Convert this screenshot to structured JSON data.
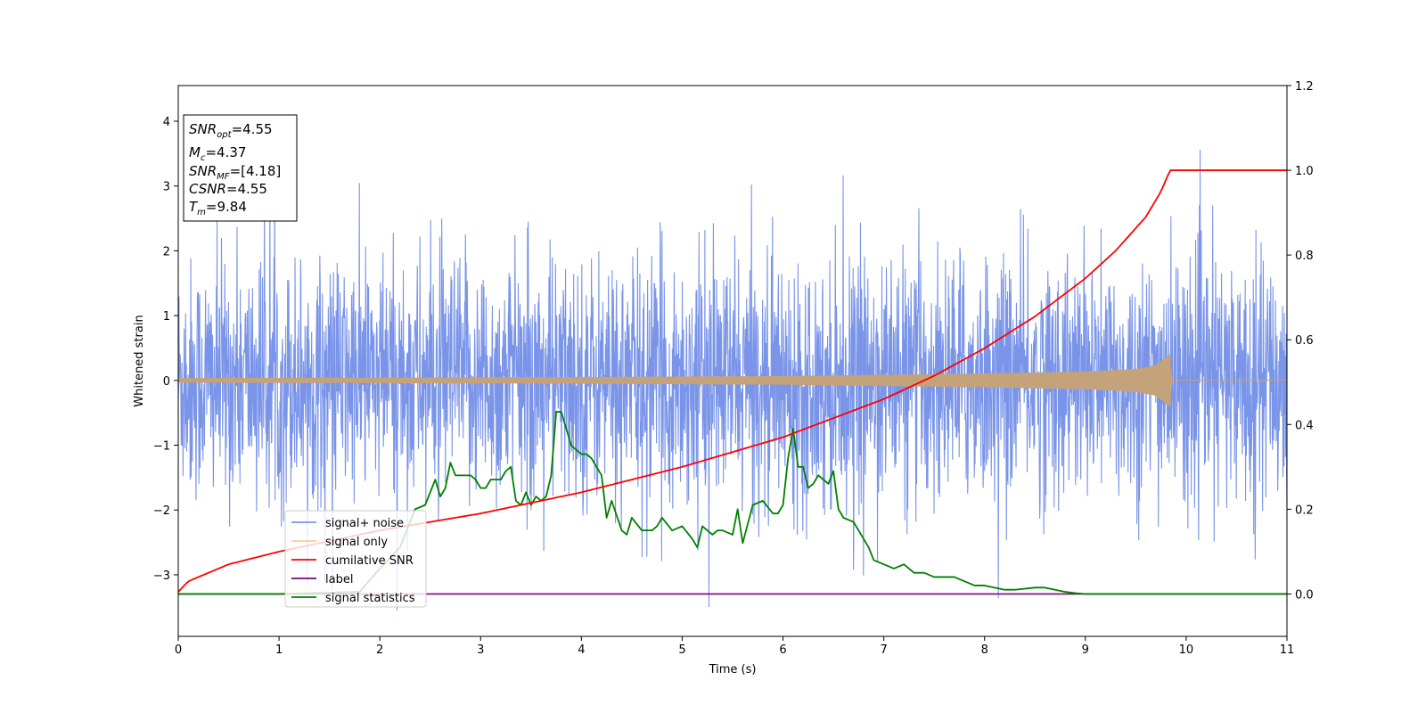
{
  "chart_data": {
    "type": "line",
    "title": "",
    "xlabel": "Time (s)",
    "ylabel": "Whitened strain",
    "xlim": [
      0,
      11
    ],
    "ylim_left": [
      -3.95,
      4.55
    ],
    "ylim_right": [
      -0.1,
      1.2
    ],
    "x_ticks": [
      0,
      1,
      2,
      3,
      4,
      5,
      6,
      7,
      8,
      9,
      10,
      11
    ],
    "y_ticks_left": [
      -3,
      -2,
      -1,
      0,
      1,
      2,
      3,
      4
    ],
    "y_ticks_right": [
      0.0,
      0.2,
      0.4,
      0.6,
      0.8,
      1.0,
      1.2
    ],
    "grid": false,
    "legend_position": "lower-left",
    "merger_time": 9.84,
    "series": [
      {
        "name": "signal+ noise",
        "axis": "left",
        "color": "#7994e8",
        "description_envelope": {
          "typical_amplitude": 1.5,
          "max": 4.15,
          "min": -3.55
        }
      },
      {
        "name": "signal only",
        "axis": "left",
        "color": "#c4a27a",
        "envelope": {
          "x": [
            0,
            2,
            4,
            6,
            7,
            8,
            9,
            9.5,
            9.7,
            9.84,
            9.85,
            11
          ],
          "amplitude": [
            0.03,
            0.035,
            0.045,
            0.06,
            0.08,
            0.1,
            0.13,
            0.17,
            0.23,
            0.4,
            0.0,
            0.0
          ]
        }
      },
      {
        "name": "cumilative SNR",
        "axis": "right",
        "color": "#ff0000",
        "x": [
          0,
          0.1,
          0.5,
          1,
          1.5,
          2,
          3,
          4,
          5,
          6,
          7,
          7.5,
          8,
          8.5,
          9,
          9.3,
          9.6,
          9.75,
          9.84,
          10,
          11
        ],
        "values": [
          0.005,
          0.03,
          0.07,
          0.1,
          0.125,
          0.15,
          0.19,
          0.24,
          0.3,
          0.37,
          0.46,
          0.515,
          0.58,
          0.655,
          0.745,
          0.81,
          0.89,
          0.95,
          1.0,
          1.0,
          1.0
        ]
      },
      {
        "name": "label",
        "axis": "right",
        "color": "#800080",
        "x": [
          0,
          11
        ],
        "values": [
          0.0,
          0.0
        ]
      },
      {
        "name": "signal statistics",
        "axis": "right",
        "color": "#008000",
        "x": [
          0,
          1,
          1.8,
          2.0,
          2.2,
          2.35,
          2.45,
          2.55,
          2.6,
          2.65,
          2.7,
          2.75,
          2.8,
          2.9,
          2.95,
          3.0,
          3.05,
          3.1,
          3.2,
          3.25,
          3.3,
          3.35,
          3.4,
          3.45,
          3.5,
          3.55,
          3.6,
          3.65,
          3.7,
          3.75,
          3.8,
          3.9,
          4.0,
          4.05,
          4.1,
          4.2,
          4.25,
          4.3,
          4.4,
          4.45,
          4.5,
          4.6,
          4.7,
          4.75,
          4.8,
          4.9,
          5.0,
          5.1,
          5.15,
          5.2,
          5.3,
          5.35,
          5.4,
          5.5,
          5.55,
          5.6,
          5.7,
          5.8,
          5.9,
          5.95,
          6.0,
          6.05,
          6.1,
          6.15,
          6.2,
          6.25,
          6.3,
          6.35,
          6.4,
          6.45,
          6.5,
          6.55,
          6.6,
          6.7,
          6.8,
          6.85,
          6.9,
          7.0,
          7.1,
          7.2,
          7.3,
          7.4,
          7.5,
          7.6,
          7.7,
          7.8,
          7.9,
          8.0,
          8.1,
          8.2,
          8.3,
          8.5,
          8.6,
          8.7,
          8.8,
          8.9,
          9.0,
          9.1,
          9.5,
          10,
          11
        ],
        "values": [
          0.0,
          0.0,
          0.005,
          0.06,
          0.11,
          0.2,
          0.21,
          0.27,
          0.23,
          0.25,
          0.31,
          0.28,
          0.28,
          0.28,
          0.27,
          0.25,
          0.25,
          0.27,
          0.27,
          0.29,
          0.3,
          0.22,
          0.21,
          0.24,
          0.21,
          0.23,
          0.22,
          0.23,
          0.28,
          0.43,
          0.43,
          0.35,
          0.33,
          0.33,
          0.32,
          0.28,
          0.18,
          0.22,
          0.15,
          0.14,
          0.18,
          0.15,
          0.15,
          0.16,
          0.18,
          0.15,
          0.16,
          0.13,
          0.11,
          0.16,
          0.14,
          0.15,
          0.15,
          0.14,
          0.2,
          0.12,
          0.21,
          0.22,
          0.19,
          0.19,
          0.21,
          0.32,
          0.39,
          0.3,
          0.3,
          0.25,
          0.26,
          0.28,
          0.27,
          0.26,
          0.29,
          0.2,
          0.18,
          0.17,
          0.13,
          0.11,
          0.08,
          0.07,
          0.06,
          0.07,
          0.05,
          0.05,
          0.04,
          0.04,
          0.04,
          0.03,
          0.02,
          0.02,
          0.015,
          0.01,
          0.01,
          0.015,
          0.015,
          0.01,
          0.005,
          0.002,
          0.0,
          0.0,
          0.0,
          0.0,
          0.0
        ]
      }
    ],
    "legend": [
      {
        "label": "signal+ noise",
        "color": "#7994e8"
      },
      {
        "label": "signal only",
        "color": "#ffc894"
      },
      {
        "label": "cumilative SNR",
        "color": "#ff0000"
      },
      {
        "label": "label",
        "color": "#800080"
      },
      {
        "label": "signal statistics",
        "color": "#008000"
      }
    ],
    "annotation_box": {
      "lines": [
        {
          "base": "SNR",
          "sub": "opt",
          "value": "=4.55"
        },
        {
          "base": "M",
          "sub": "c",
          "value": "=4.37"
        },
        {
          "base": "SNR",
          "sub": "MF",
          "value": "=[4.18]"
        },
        {
          "base": "CSNR",
          "sub": "",
          "value": "=4.55"
        },
        {
          "base": "T",
          "sub": "m",
          "value": "=9.84"
        }
      ]
    }
  }
}
